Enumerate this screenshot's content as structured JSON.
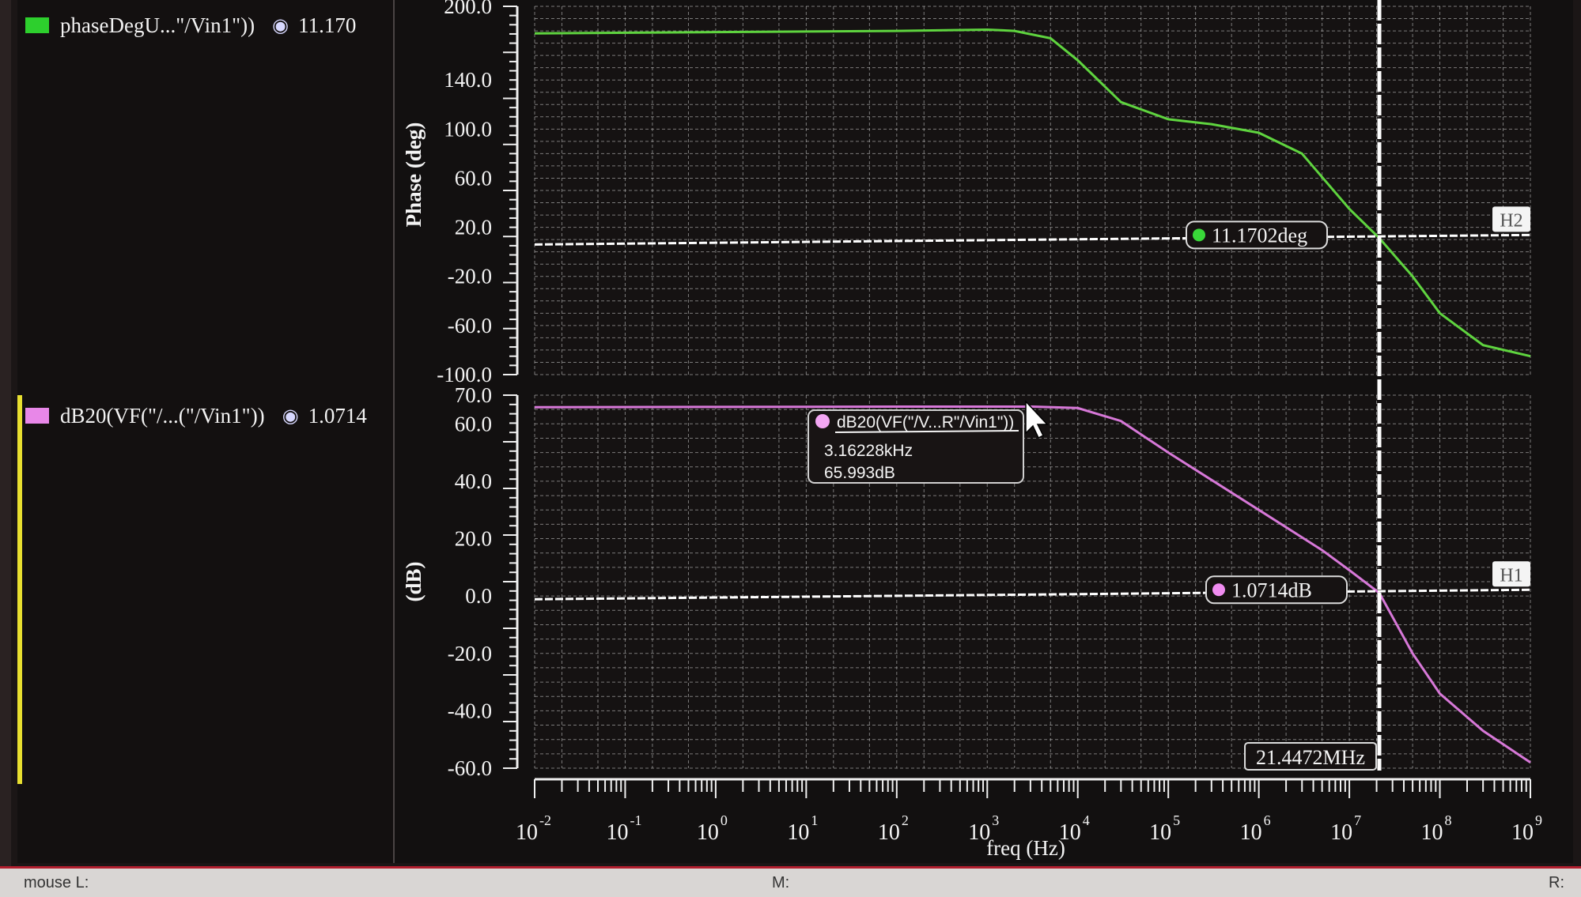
{
  "legend": [
    {
      "label": "phaseDegU...\"/Vin1\"))",
      "value": "11.170",
      "color": "#2dcf2d"
    },
    {
      "label": "dB20(VF(\"/...(\"/Vin1\"))",
      "value": "1.0714",
      "color": "#e887e8"
    }
  ],
  "status": {
    "mouse_l": "mouse L:",
    "m": "M:",
    "r": "R:"
  },
  "colors": {
    "phase": "#5fd43f",
    "mag": "#d778d8",
    "grid": "#cfcfcf",
    "marker": "#ffffff"
  },
  "chart_data": [
    {
      "type": "line",
      "ylabel": "Phase (deg)",
      "ylim": [
        -100,
        200
      ],
      "yticks": [
        -100,
        -60,
        -20,
        20,
        60,
        100,
        140,
        200
      ],
      "ytick_labels": [
        "-100.0",
        "-60.0",
        "-20.0",
        "20.0",
        "60.0",
        "100.0",
        "140.0",
        "200.0"
      ],
      "x_scale": "log",
      "xlim": [
        0.01,
        1000000000
      ],
      "series": [
        {
          "name": "phaseDegU...\"/Vin1\"))",
          "x": [
            0.01,
            1,
            100,
            1000,
            2000,
            5000,
            10000,
            30000,
            100000,
            300000,
            1000000,
            3000000,
            10000000,
            21447200,
            50000000,
            100000000,
            300000000,
            1000000000
          ],
          "y": [
            178,
            179,
            180,
            181,
            180,
            174,
            156,
            122,
            108,
            104,
            97,
            80,
            35,
            11.17,
            -20,
            -50,
            -76,
            -85
          ]
        }
      ],
      "marker": {
        "label": "11.1702deg",
        "y": 11.1702,
        "name": "H2"
      }
    },
    {
      "type": "line",
      "ylabel": "(dB)",
      "ylim": [
        -60,
        70
      ],
      "yticks": [
        -60,
        -40,
        -20,
        0,
        20,
        40,
        60,
        70
      ],
      "ytick_labels": [
        "-60.0",
        "-40.0",
        "-20.0",
        "0.0",
        "20.0",
        "40.0",
        "60.0",
        "70.0"
      ],
      "x_scale": "log",
      "xlim": [
        0.01,
        1000000000
      ],
      "xlabel": "freq (Hz)",
      "xticks": [
        0.01,
        0.1,
        1,
        10,
        100,
        1000,
        10000,
        100000,
        1000000,
        10000000,
        100000000,
        1000000000
      ],
      "xtick_exponents": [
        "-2",
        "-1",
        "0",
        "1",
        "2",
        "3",
        "4",
        "5",
        "6",
        "7",
        "8",
        "9"
      ],
      "series": [
        {
          "name": "dB20(VF(\"/...(\"/Vin1\"))",
          "x": [
            0.01,
            1,
            100,
            1000,
            3162.28,
            10000,
            30000,
            100000,
            1000000,
            5000000,
            10000000,
            21447200,
            50000000,
            100000000,
            300000000,
            1000000000
          ],
          "y": [
            65.8,
            65.9,
            66,
            66,
            65.993,
            65.5,
            61,
            50,
            30,
            16,
            9,
            1.0714,
            -20,
            -34,
            -47,
            -58
          ]
        }
      ],
      "marker": {
        "label": "1.0714dB",
        "y": 1.0714,
        "name": "H1"
      },
      "tooltip": {
        "title": "dB20(VF(\"/V...R\"/Vin1\"))",
        "line1": "3.16228kHz",
        "line2": "65.993dB",
        "x": 3162.28,
        "y": 65.993
      }
    }
  ],
  "vertical_marker": {
    "x": 21447200,
    "label": "21.4472MHz"
  }
}
